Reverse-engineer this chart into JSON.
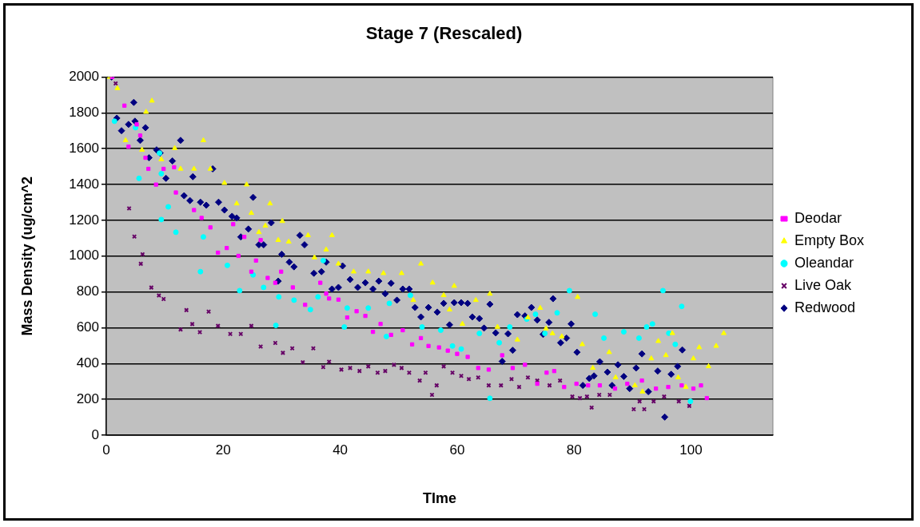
{
  "chart_data": {
    "type": "scatter",
    "title": "Stage 7 (Rescaled)",
    "xlabel": "TIme",
    "ylabel": "Mass Density (ug/cm^2",
    "xlim": [
      0,
      114
    ],
    "xticks": [
      0,
      20,
      40,
      60,
      80,
      100
    ],
    "ylim": [
      0,
      2000
    ],
    "yticks": [
      0,
      200,
      400,
      600,
      800,
      1000,
      1200,
      1400,
      1600,
      1800,
      2000
    ],
    "grid": "y",
    "legend": "right",
    "series": [
      {
        "name": "Deodar",
        "color": "#ff00ff",
        "marker": "square",
        "x": [
          1,
          3.1,
          3.8,
          5.2,
          5.8,
          6.7,
          7.2,
          8.5,
          9.8,
          11.6,
          11.9,
          15,
          16.3,
          17.8,
          19.1,
          20.6,
          21.7,
          22.6,
          23.6,
          24.8,
          25.6,
          26.4,
          27.6,
          28.9,
          29.9,
          31.9,
          34,
          36.6,
          37.6,
          38.1,
          39.7,
          41.2,
          42.8,
          44.3,
          45.6,
          46.9,
          48.7,
          50.7,
          52.3,
          53.8,
          55.1,
          56.9,
          58.4,
          60,
          61.8,
          63.6,
          65.4,
          67.7,
          69.5,
          71.6,
          73.7,
          75.3,
          76.6,
          78.3,
          80.4,
          82.4,
          84.4,
          87,
          89.1,
          91.6,
          94,
          96.1,
          98.4,
          100.4,
          101.7,
          102.7
        ],
        "values": [
          2000,
          1840,
          1611,
          1735,
          1673,
          1549,
          1487,
          1399,
          1487,
          1496,
          1355,
          1257,
          1213,
          1160,
          1019,
          1045,
          1178,
          1001,
          1107,
          913,
          975,
          1089,
          878,
          851,
          913,
          825,
          728,
          851,
          790,
          763,
          757,
          657,
          692,
          666,
          577,
          621,
          560,
          586,
          507,
          542,
          498,
          490,
          472,
          454,
          437,
          375,
          366,
          446,
          375,
          393,
          287,
          349,
          358,
          269,
          287,
          278,
          278,
          260,
          287,
          305,
          260,
          269,
          278,
          260,
          278,
          207
        ]
      },
      {
        "name": "Empty Box",
        "color": "#ffff00",
        "marker": "triangle",
        "x": [
          0.6,
          1.9,
          3.3,
          6.1,
          6.8,
          7.8,
          9.4,
          11.7,
          12.7,
          15,
          16.6,
          17.8,
          20.2,
          22.3,
          24,
          24.8,
          26.1,
          27.2,
          28,
          29.4,
          30.1,
          31.2,
          34.5,
          35.6,
          37.6,
          38.6,
          39.7,
          42.3,
          44.8,
          47.4,
          50.5,
          52.5,
          53.8,
          55.8,
          57.7,
          58.7,
          59.5,
          60.9,
          63.2,
          65.6,
          66.9,
          70.3,
          72.1,
          74.2,
          75.2,
          76.3,
          77.9,
          80.6,
          81.4,
          83.2,
          86,
          87.1,
          90.4,
          91.7,
          93.2,
          94.4,
          95.7,
          96.8,
          97.8,
          99.1,
          100.4,
          101.4,
          103,
          104.3,
          105.6
        ],
        "values": [
          2000,
          1937,
          1646,
          1593,
          1805,
          1867,
          1540,
          1602,
          1487,
          1487,
          1646,
          1487,
          1408,
          1293,
          1399,
          1240,
          1133,
          1169,
          1293,
          1089,
          1195,
          1080,
          1116,
          992,
          1036,
          1116,
          957,
          913,
          913,
          904,
          904,
          754,
          957,
          851,
          781,
          701,
          833,
          621,
          754,
          789,
          604,
          533,
          657,
          710,
          595,
          568,
          551,
          771,
          507,
          375,
          463,
          322,
          278,
          243,
          428,
          525,
          446,
          569,
          322,
          269,
          428,
          490,
          384,
          498,
          569
        ]
      },
      {
        "name": "Oleandar",
        "color": "#00ffff",
        "marker": "circle",
        "x": [
          1.4,
          5,
          5.6,
          9.1,
          9.4,
          9.4,
          10.6,
          11.9,
          16.1,
          16.6,
          20.7,
          22.8,
          25.1,
          26.9,
          29,
          29.5,
          32.1,
          34.9,
          36.2,
          37.1,
          40.7,
          41.2,
          44.8,
          47.9,
          48.4,
          52,
          54,
          57.2,
          59.2,
          60.7,
          63.8,
          65.6,
          67.2,
          69,
          71.9,
          73.4,
          75,
          77.1,
          79.2,
          83.6,
          85.1,
          88.5,
          91.1,
          92.4,
          93.4,
          95.2,
          96.2,
          97.3,
          98.4,
          99.9
        ],
        "values": [
          1753,
          1717,
          1434,
          1575,
          1460,
          1204,
          1275,
          1133,
          913,
          1107,
          948,
          807,
          895,
          825,
          613,
          772,
          754,
          701,
          772,
          975,
          604,
          710,
          710,
          551,
          736,
          781,
          604,
          586,
          498,
          481,
          568,
          206,
          516,
          604,
          648,
          675,
          568,
          683,
          807,
          675,
          542,
          577,
          542,
          604,
          621,
          807,
          569,
          507,
          719,
          189
        ]
      },
      {
        "name": "Live Oak",
        "color": "#660066",
        "marker": "cross",
        "x": [
          1.6,
          3.9,
          4.8,
          5.9,
          6.2,
          7.7,
          9,
          9.8,
          12.7,
          13.7,
          14.7,
          16,
          17.5,
          19.1,
          21.2,
          23,
          24.8,
          26.4,
          28.9,
          30.2,
          31.8,
          33.6,
          35.4,
          37.1,
          38.1,
          40.2,
          41.7,
          43.3,
          44.8,
          46.4,
          47.7,
          49.2,
          50.5,
          51.8,
          53.6,
          54.6,
          55.7,
          56.5,
          57.7,
          59.2,
          60.7,
          62,
          63.6,
          65.4,
          67.5,
          69.3,
          70.6,
          72.1,
          73.7,
          75.8,
          77.6,
          79.7,
          81,
          82.2,
          83,
          84.3,
          86.1,
          90.2,
          91.2,
          92,
          93.6,
          95.4,
          97.9,
          99.7
        ],
        "values": [
          1964,
          1266,
          1109,
          957,
          1010,
          824,
          780,
          760,
          590,
          698,
          620,
          575,
          690,
          610,
          565,
          565,
          610,
          495,
          515,
          460,
          485,
          407,
          485,
          380,
          410,
          366,
          375,
          358,
          384,
          349,
          358,
          393,
          375,
          349,
          305,
          349,
          225,
          278,
          384,
          349,
          331,
          313,
          322,
          278,
          278,
          313,
          269,
          322,
          305,
          278,
          305,
          216,
          207,
          216,
          154,
          225,
          225,
          145,
          189,
          145,
          189,
          216,
          189,
          163
        ]
      },
      {
        "name": "Redwood",
        "color": "#000080",
        "marker": "diamond",
        "x": [
          0.9,
          1.8,
          2.6,
          3.8,
          4.7,
          4.9,
          5.8,
          6.7,
          7.3,
          8.6,
          9.2,
          10.2,
          11.3,
          12.7,
          13.3,
          14.3,
          14.8,
          16.1,
          17.1,
          18.2,
          19.2,
          20.2,
          21.5,
          22.3,
          23,
          24.3,
          25.1,
          26.1,
          26.9,
          28.2,
          29.4,
          30,
          31.3,
          32.1,
          33.1,
          33.9,
          35.5,
          36.8,
          37.6,
          38.6,
          39.7,
          40.4,
          41.7,
          43,
          44.3,
          45.6,
          46.6,
          47.7,
          48.7,
          49.7,
          50.7,
          51.8,
          52.8,
          53.8,
          55.1,
          56.6,
          57.7,
          58.7,
          59.5,
          60.7,
          61.8,
          62.6,
          63.8,
          64.6,
          65.6,
          66.6,
          67.7,
          68.7,
          69.5,
          70.3,
          71.6,
          72.7,
          73.7,
          74.7,
          75.7,
          76.4,
          77.7,
          78.7,
          79.5,
          80.5,
          81.5,
          82.6,
          83.4,
          84.4,
          85.7,
          86.5,
          87.5,
          88.5,
          89.5,
          90.6,
          91.6,
          92.7,
          94.3,
          95.5,
          96.6,
          97.7,
          98.5
        ],
        "values": [
          2000,
          1770,
          1700,
          1735,
          1858,
          1753,
          1646,
          1717,
          1549,
          1593,
          1575,
          1434,
          1531,
          1646,
          1337,
          1310,
          1443,
          1301,
          1284,
          1487,
          1301,
          1257,
          1222,
          1213,
          1107,
          1151,
          1328,
          1063,
          1063,
          1186,
          860,
          1010,
          966,
          940,
          1116,
          1063,
          904,
          913,
          966,
          816,
          825,
          945,
          869,
          825,
          851,
          816,
          860,
          790,
          848,
          754,
          816,
          816,
          713,
          660,
          713,
          687,
          736,
          616,
          740,
          740,
          736,
          660,
          651,
          598,
          731,
          571,
          412,
          566,
          474,
          673,
          666,
          713,
          643,
          563,
          630,
          762,
          516,
          542,
          621,
          463,
          278,
          317,
          331,
          410,
          352,
          278,
          393,
          328,
          260,
          375,
          454,
          243,
          358,
          101,
          340,
          384,
          476
        ]
      }
    ]
  }
}
